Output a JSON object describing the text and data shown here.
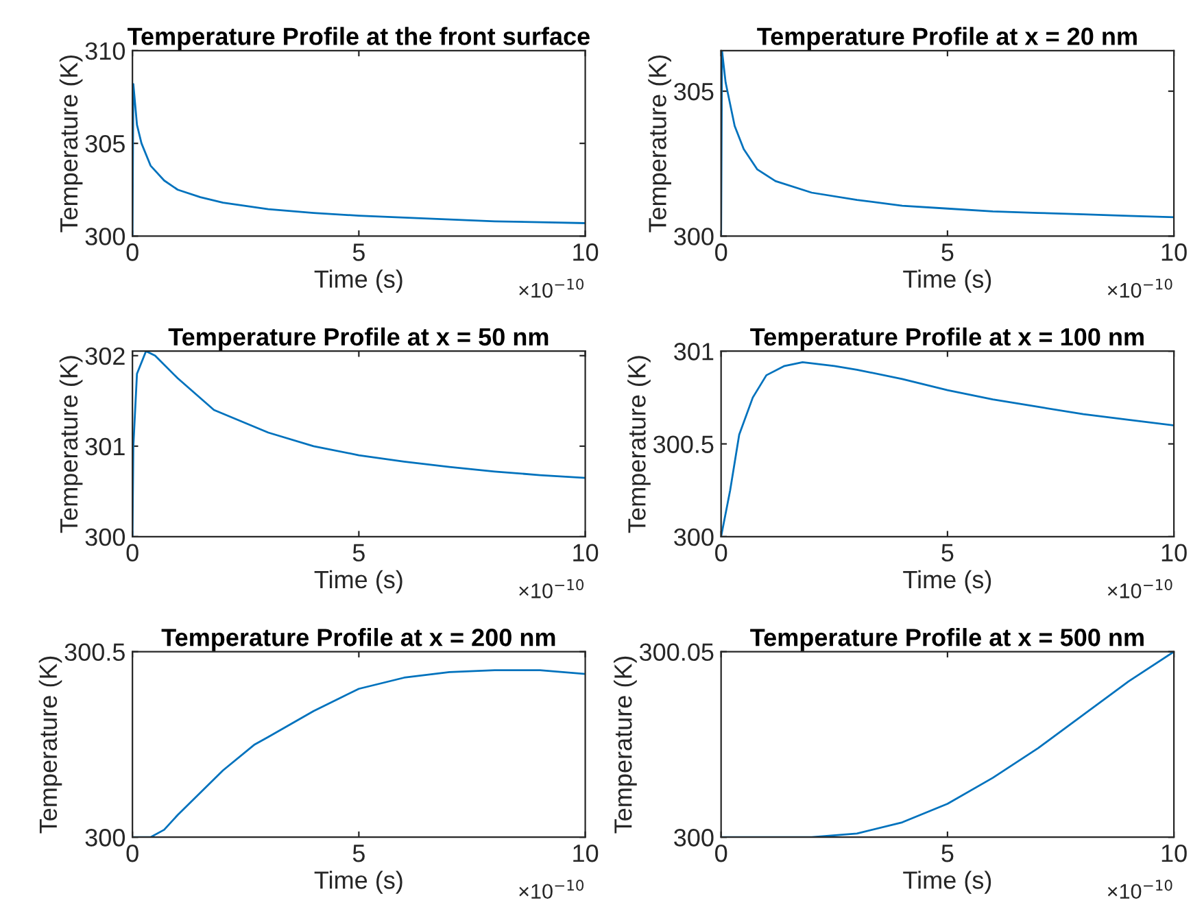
{
  "chart_data": [
    {
      "type": "line",
      "title": "Temperature Profile at the front surface",
      "xlabel": "Time (s)",
      "ylabel": "Temperature (K)",
      "annotations": [
        "×10$^{−10}$"
      ],
      "xlim": [
        0,
        10
      ],
      "xticks": [
        0,
        5,
        10
      ],
      "ylim": [
        300,
        310
      ],
      "yticks": [
        300,
        305,
        310
      ],
      "series": [
        {
          "color": "#0072bd",
          "x": [
            0,
            0.02,
            0.1,
            0.2,
            0.4,
            0.7,
            1,
            1.5,
            2,
            3,
            4,
            5,
            6,
            7,
            8,
            9,
            10
          ],
          "values": [
            300,
            308.2,
            306,
            305,
            303.8,
            303,
            302.5,
            302.1,
            301.8,
            301.45,
            301.25,
            301.1,
            301,
            300.9,
            300.8,
            300.75,
            300.7
          ]
        }
      ]
    },
    {
      "type": "line",
      "title": "Temperature Profile at x = 20 nm",
      "xlabel": "Time (s)",
      "ylabel": "Temperature (K)",
      "annotations": [
        "×10$^{−10}$"
      ],
      "xlim": [
        0,
        10
      ],
      "xticks": [
        0,
        5,
        10
      ],
      "ylim": [
        300,
        306.4
      ],
      "yticks": [
        300,
        305
      ],
      "series": [
        {
          "color": "#0072bd",
          "x": [
            0,
            0.02,
            0.1,
            0.3,
            0.5,
            0.8,
            1.2,
            2,
            3,
            4,
            5,
            6,
            7,
            8,
            9,
            10
          ],
          "values": [
            300,
            306.4,
            305.3,
            303.8,
            303,
            302.3,
            301.9,
            301.5,
            301.25,
            301.05,
            300.95,
            300.85,
            300.8,
            300.75,
            300.7,
            300.65
          ]
        }
      ]
    },
    {
      "type": "line",
      "title": "Temperature Profile at x = 50 nm",
      "xlabel": "Time (s)",
      "ylabel": "Temperature (K)",
      "annotations": [
        "×10$^{−10}$"
      ],
      "xlim": [
        0,
        10
      ],
      "xticks": [
        0,
        5,
        10
      ],
      "ylim": [
        300,
        302.05
      ],
      "yticks": [
        300,
        301,
        302
      ],
      "series": [
        {
          "color": "#0072bd",
          "x": [
            0,
            0.02,
            0.1,
            0.3,
            0.5,
            1,
            1.8,
            3,
            4,
            5,
            6,
            7,
            8,
            9,
            10
          ],
          "values": [
            300,
            301,
            301.8,
            302.05,
            302,
            301.75,
            301.4,
            301.15,
            301.0,
            300.9,
            300.83,
            300.77,
            300.72,
            300.68,
            300.65
          ]
        }
      ]
    },
    {
      "type": "line",
      "title": "Temperature Profile at x = 100 nm",
      "xlabel": "Time (s)",
      "ylabel": "Temperature (K)",
      "annotations": [
        "×10$^{−10}$"
      ],
      "xlim": [
        0,
        10
      ],
      "xticks": [
        0,
        5,
        10
      ],
      "ylim": [
        300,
        301
      ],
      "yticks": [
        300,
        300.5,
        301
      ],
      "series": [
        {
          "color": "#0072bd",
          "x": [
            0,
            0.2,
            0.4,
            0.7,
            1,
            1.4,
            1.8,
            2.5,
            3,
            4,
            5,
            6,
            7,
            8,
            9,
            10
          ],
          "values": [
            300,
            300.25,
            300.55,
            300.75,
            300.87,
            300.92,
            300.94,
            300.92,
            300.9,
            300.85,
            300.79,
            300.74,
            300.7,
            300.66,
            300.63,
            300.6
          ]
        }
      ]
    },
    {
      "type": "line",
      "title": "Temperature Profile at x = 200 nm",
      "xlabel": "Time (s)",
      "ylabel": "Temperature (K)",
      "annotations": [
        "×10$^{−10}$"
      ],
      "xlim": [
        0,
        10
      ],
      "xticks": [
        0,
        5,
        10
      ],
      "ylim": [
        300,
        300.5
      ],
      "yticks": [
        300,
        300.5
      ],
      "series": [
        {
          "color": "#0072bd",
          "x": [
            0,
            0.4,
            0.7,
            1,
            1.5,
            2,
            2.7,
            3,
            4,
            5,
            6,
            7,
            8,
            9,
            10
          ],
          "values": [
            300,
            300,
            300.02,
            300.06,
            300.12,
            300.18,
            300.25,
            300.27,
            300.34,
            300.4,
            300.43,
            300.445,
            300.45,
            300.45,
            300.44
          ]
        }
      ]
    },
    {
      "type": "line",
      "title": "Temperature Profile at x = 500 nm",
      "xlabel": "Time (s)",
      "ylabel": "Temperature (K)",
      "annotations": [
        "×10$^{−10}$"
      ],
      "xlim": [
        0,
        10
      ],
      "xticks": [
        0,
        5,
        10
      ],
      "ylim": [
        300,
        300.05
      ],
      "yticks": [
        300,
        300.05
      ],
      "series": [
        {
          "color": "#0072bd",
          "x": [
            0,
            2,
            3,
            4,
            5,
            6,
            7,
            8,
            9,
            10
          ],
          "values": [
            300,
            300,
            300.001,
            300.004,
            300.009,
            300.016,
            300.024,
            300.033,
            300.042,
            300.05
          ]
        }
      ]
    }
  ]
}
